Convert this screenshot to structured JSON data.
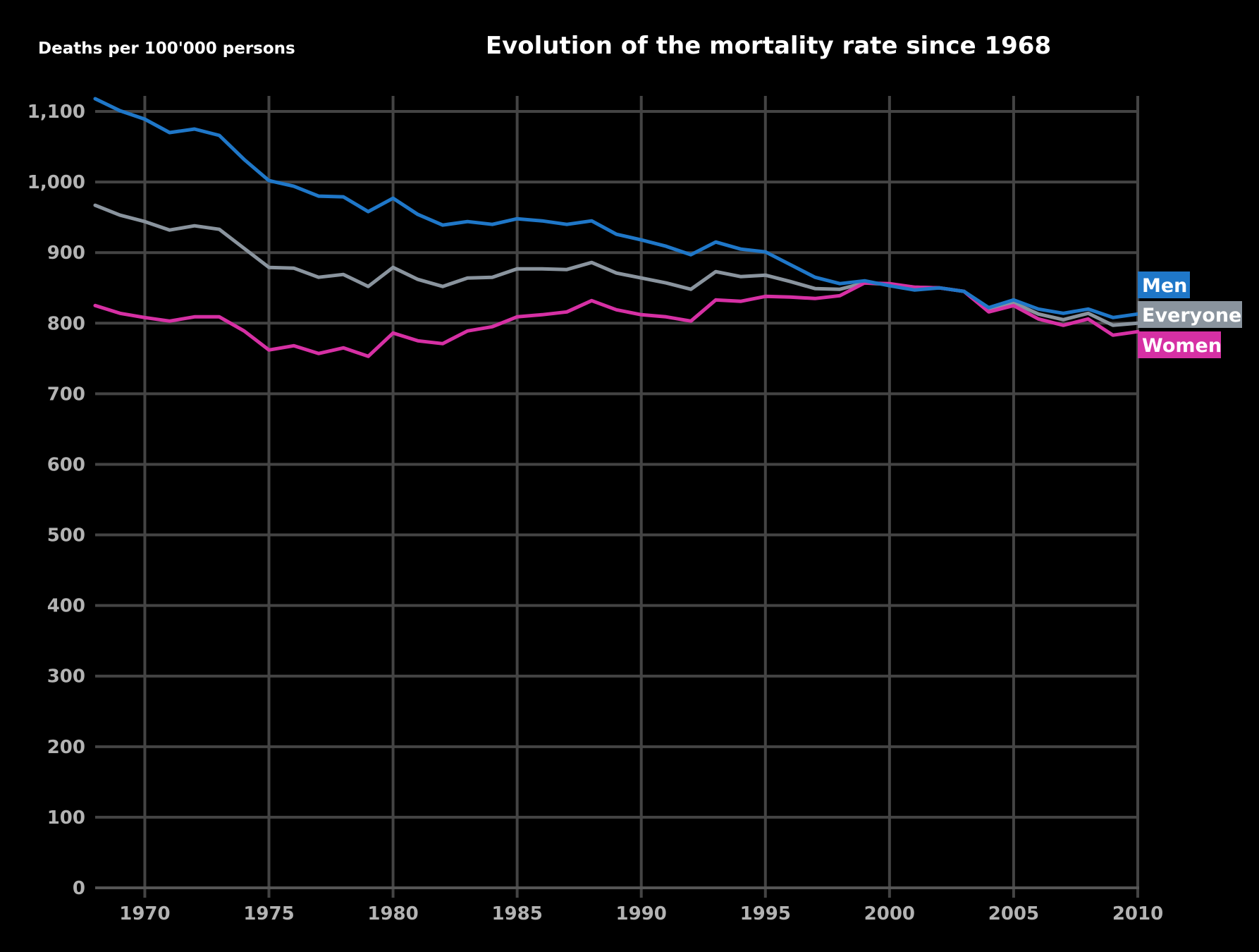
{
  "chart_data": {
    "type": "line",
    "title": "Evolution of the mortality rate since 1968",
    "ylabel": "Deaths per 100'000 persons",
    "xlabel": "",
    "xlim": [
      1968,
      2010
    ],
    "ylim": [
      0,
      1120
    ],
    "x_ticks": [
      1970,
      1975,
      1980,
      1985,
      1990,
      1995,
      2000,
      2005,
      2010
    ],
    "y_ticks": [
      0,
      100,
      200,
      300,
      400,
      500,
      600,
      700,
      800,
      900,
      1000,
      1100
    ],
    "y_tick_labels": [
      "0",
      "100",
      "200",
      "300",
      "400",
      "500",
      "600",
      "700",
      "800",
      "900",
      "1,000",
      "1,100"
    ],
    "x_tick_labels": [
      "1970",
      "1975",
      "1980",
      "1985",
      "1990",
      "1995",
      "2000",
      "2005",
      "2010"
    ],
    "grid": true,
    "legend": "right, labels at line ends",
    "x": [
      1968,
      1969,
      1970,
      1971,
      1972,
      1973,
      1974,
      1975,
      1976,
      1977,
      1978,
      1979,
      1980,
      1981,
      1982,
      1983,
      1984,
      1985,
      1986,
      1987,
      1988,
      1989,
      1990,
      1991,
      1992,
      1993,
      1994,
      1995,
      1996,
      1997,
      1998,
      1999,
      2000,
      2001,
      2002,
      2003,
      2004,
      2005,
      2006,
      2007,
      2008,
      2009,
      2010
    ],
    "series": [
      {
        "name": "Men",
        "color": "#1f77c8",
        "values": [
          1118,
          1101,
          1089,
          1070,
          1075,
          1066,
          1032,
          1002,
          994,
          980,
          979,
          958,
          977,
          954,
          939,
          944,
          940,
          948,
          945,
          940,
          945,
          926,
          918,
          909,
          897,
          915,
          905,
          901,
          883,
          865,
          856,
          860,
          853,
          847,
          850,
          845,
          822,
          833,
          820,
          814,
          820,
          808,
          813
        ]
      },
      {
        "name": "Everyone",
        "color": "#8a949e",
        "values": [
          967,
          953,
          944,
          932,
          938,
          933,
          906,
          879,
          878,
          865,
          869,
          852,
          879,
          862,
          852,
          864,
          865,
          877,
          877,
          876,
          886,
          871,
          864,
          857,
          848,
          873,
          866,
          868,
          859,
          849,
          848,
          857,
          855,
          851,
          850,
          845,
          820,
          829,
          813,
          805,
          814,
          797,
          800
        ]
      },
      {
        "name": "Women",
        "color": "#d630a4",
        "values": [
          825,
          814,
          808,
          803,
          809,
          809,
          789,
          762,
          768,
          757,
          765,
          753,
          786,
          775,
          771,
          789,
          795,
          809,
          812,
          816,
          832,
          819,
          812,
          809,
          803,
          833,
          831,
          838,
          837,
          835,
          839,
          857,
          856,
          851,
          850,
          845,
          816,
          825,
          806,
          797,
          806,
          783,
          788
        ]
      }
    ]
  }
}
